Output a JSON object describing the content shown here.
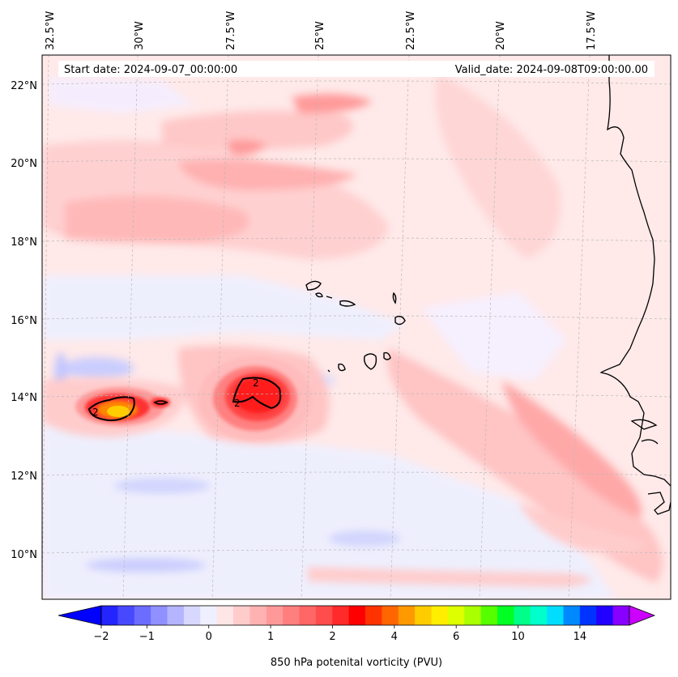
{
  "header": {
    "start_date": "Start date: 2024-09-07_00:00:00",
    "valid_date": "Valid_date: 2024-09-08T09:00:00.00"
  },
  "lon_labels": [
    "32.5°W",
    "30°W",
    "27.5°W",
    "25°W",
    "22.5°W",
    "20°W",
    "17.5°W"
  ],
  "lat_labels": [
    "22°N",
    "20°N",
    "18°N",
    "16°N",
    "14°N",
    "12°N",
    "10°N"
  ],
  "colorbar": {
    "title": "850 hPa potenital vorticity (PVU)",
    "tick_labels": [
      "−2",
      "−1",
      "0",
      "1",
      "2",
      "4",
      "6",
      "10",
      "14"
    ],
    "colors": [
      "#0000ff",
      "#2424ff",
      "#4848ff",
      "#6c6cff",
      "#9090ff",
      "#b4b4ff",
      "#d8d8ff",
      "#eef0ff",
      "#ffe6e6",
      "#ffcccc",
      "#ffb2b2",
      "#ff9999",
      "#ff7f7f",
      "#ff6666",
      "#ff4c4c",
      "#ff2a2a",
      "#ff0000",
      "#ff3300",
      "#ff6600",
      "#ff9900",
      "#ffcc00",
      "#ffee00",
      "#ddff00",
      "#aaff00",
      "#55ff00",
      "#00ff22",
      "#00ff88",
      "#00ffcc",
      "#00ddff",
      "#0088ff",
      "#0033ff",
      "#2200ff",
      "#8800ff",
      "#cc00ff"
    ]
  },
  "contour_labels": [
    "2",
    "2",
    "2"
  ],
  "map_extent": {
    "lon": [
      -32.8,
      -15.5
    ],
    "lat": [
      8.8,
      22.8
    ]
  }
}
